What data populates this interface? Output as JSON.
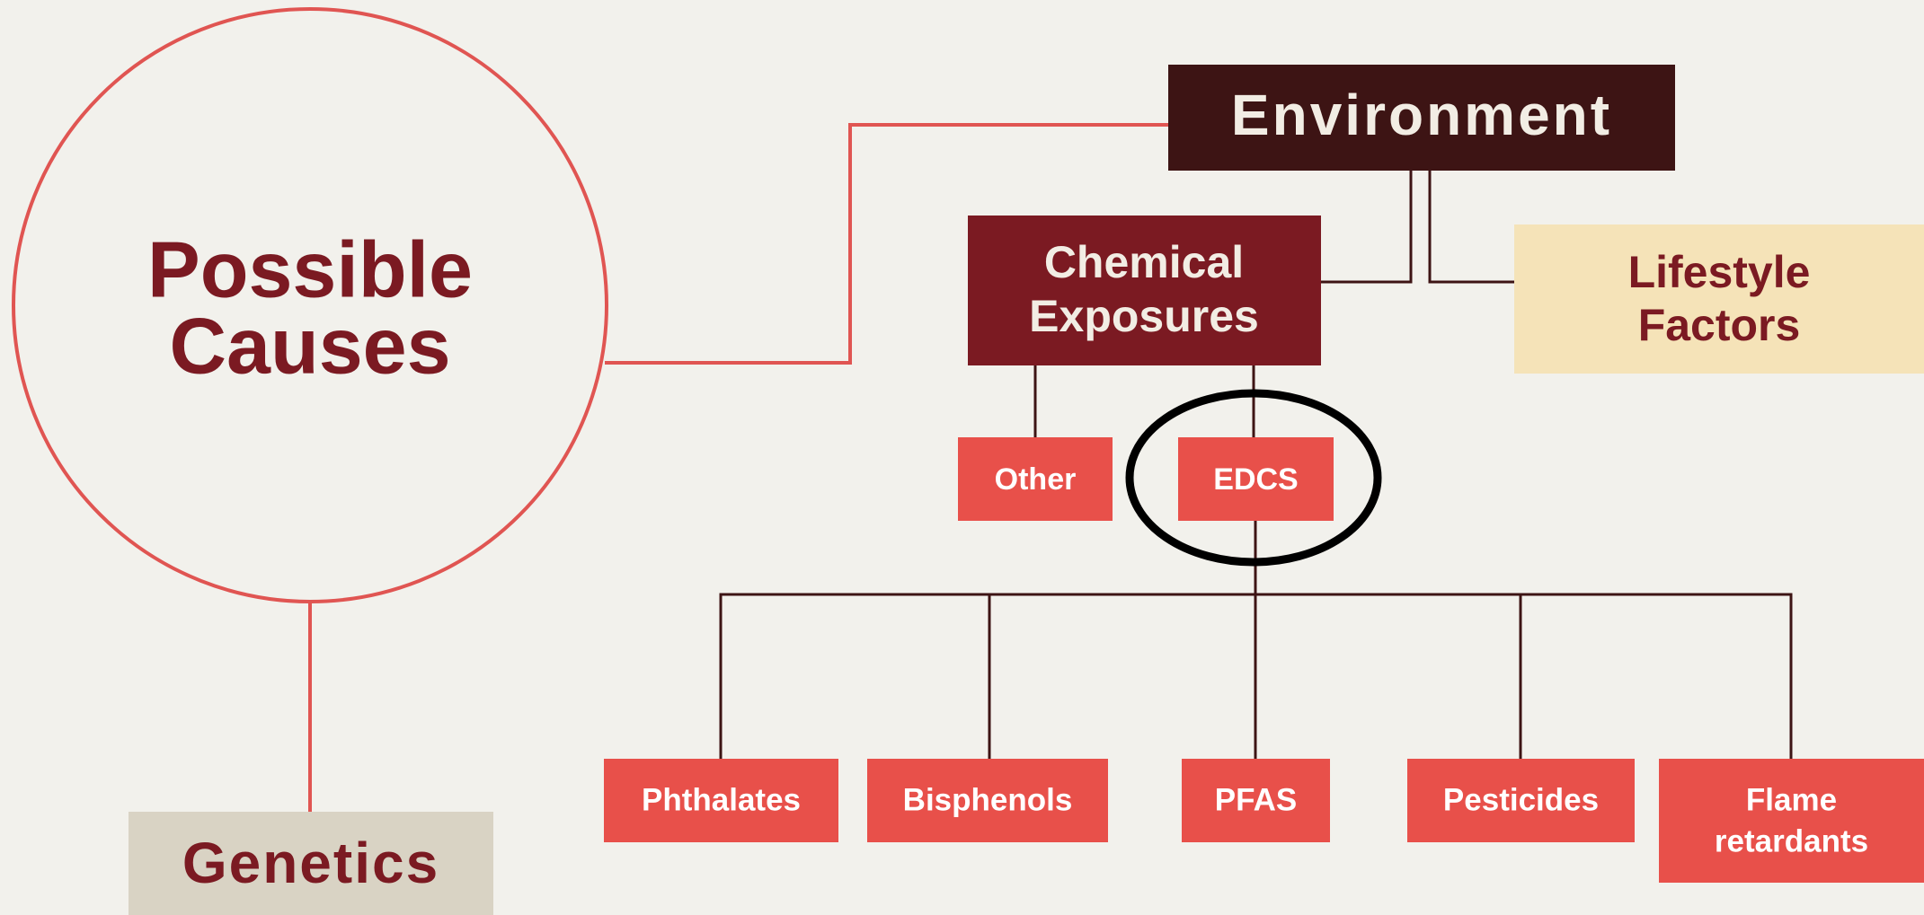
{
  "root": {
    "label": [
      "Possible",
      "Causes"
    ]
  },
  "environment": {
    "label": "Environment"
  },
  "chemical": {
    "label": [
      "Chemical",
      "Exposures"
    ]
  },
  "lifestyle": {
    "label": [
      "Lifestyle",
      "Factors"
    ]
  },
  "genetics": {
    "label": "Genetics"
  },
  "chemical_children": [
    "Other",
    "EDCS"
  ],
  "edcs_children": [
    [
      "Phthalates"
    ],
    [
      "Bisphenols"
    ],
    [
      "PFAS"
    ],
    [
      "Pesticides"
    ],
    [
      "Flame",
      "retardants"
    ]
  ]
}
